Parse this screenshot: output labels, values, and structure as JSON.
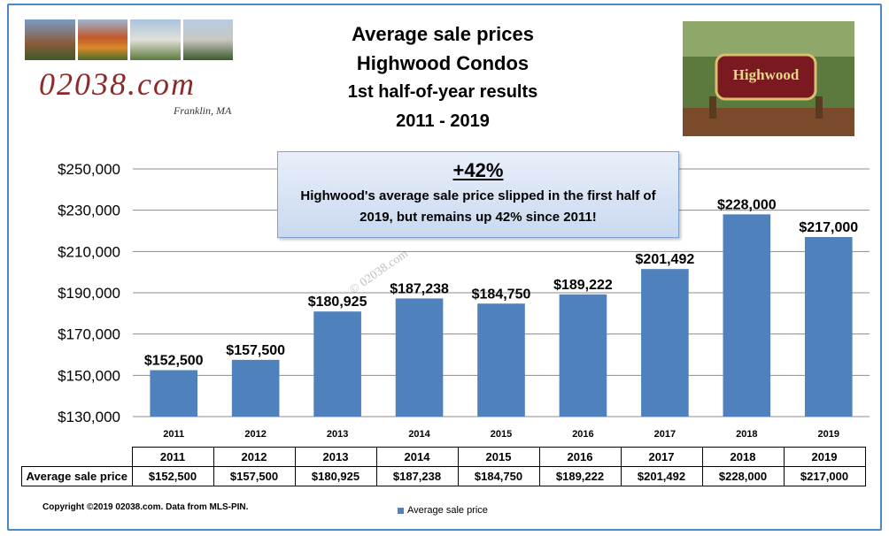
{
  "header": {
    "title_lines": [
      "Average sale prices",
      "Highwood Condos",
      "1st half-of-year results",
      "2011 - 2019"
    ],
    "logo_text": "02038.com",
    "logo_sub": "Franklin, MA"
  },
  "callout": {
    "headline": "+42%",
    "body": "Highwood's average sale price  slipped in the first half of 2019, but remains up 42% since 2011!"
  },
  "watermark": "© 02038.com",
  "table": {
    "row_label": "Average sale price",
    "years": [
      "2011",
      "2012",
      "2013",
      "2014",
      "2015",
      "2016",
      "2017",
      "2018",
      "2019"
    ],
    "values": [
      "$152,500",
      "$157,500",
      "$180,925",
      "$187,238",
      "$184,750",
      "$189,222",
      "$201,492",
      "$228,000",
      "$217,000"
    ]
  },
  "footer": "Copyright ©2019 02038.com.  Data from MLS-PIN.",
  "chart_data": {
    "type": "bar",
    "title": "",
    "xlabel": "",
    "ylabel": "",
    "categories": [
      "2011",
      "2012",
      "2013",
      "2014",
      "2015",
      "2016",
      "2017",
      "2018",
      "2019"
    ],
    "series": [
      {
        "name": "Average sale  price",
        "values": [
          152500,
          157500,
          180925,
          187238,
          184750,
          189222,
          201492,
          228000,
          217000
        ]
      }
    ],
    "data_labels": [
      "$152,500",
      "$157,500",
      "$180,925",
      "$187,238",
      "$184,750",
      "$189,222",
      "$201,492",
      "$228,000",
      "$217,000"
    ],
    "ylim": [
      130000,
      250000
    ],
    "yticks": [
      130000,
      150000,
      170000,
      190000,
      210000,
      230000,
      250000
    ],
    "ytick_labels": [
      "$130,000",
      "$150,000",
      "$170,000",
      "$190,000",
      "$210,000",
      "$230,000",
      "$250,000"
    ],
    "grid": true,
    "legend_position": "bottom",
    "bar_color": "#4f81bd",
    "grid_color": "#8c8c8c"
  }
}
